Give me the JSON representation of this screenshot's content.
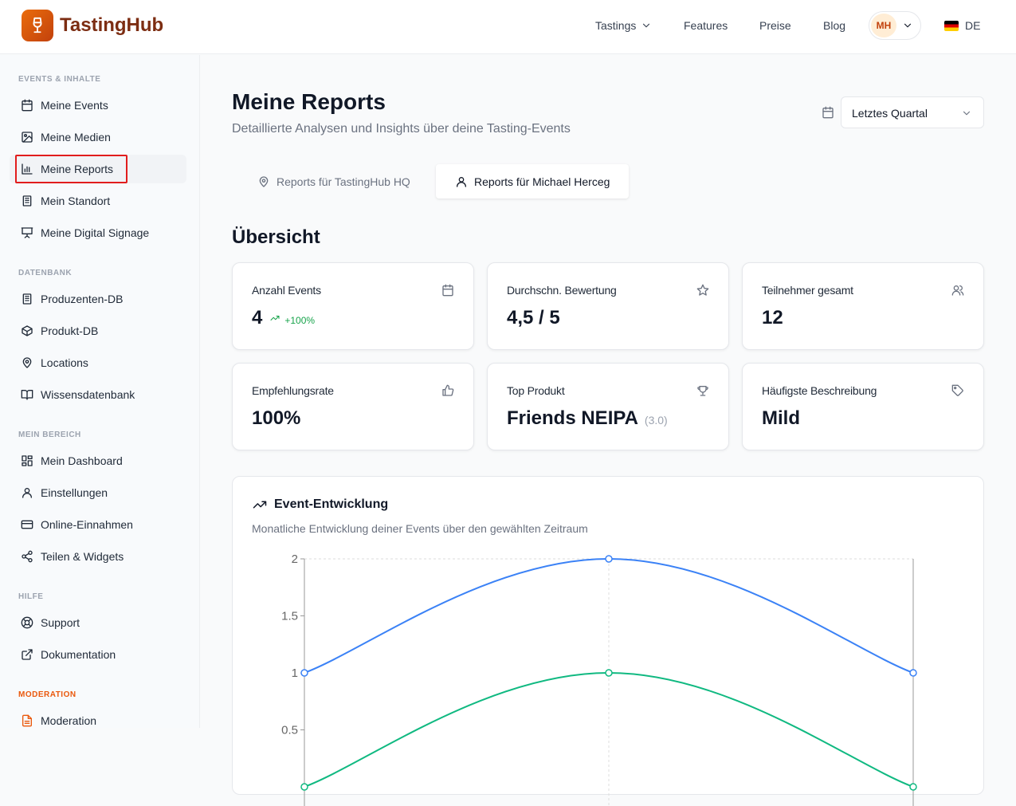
{
  "header": {
    "brand": "TastingHub",
    "nav": [
      {
        "label": "Tastings"
      },
      {
        "label": "Features"
      },
      {
        "label": "Preise"
      },
      {
        "label": "Blog"
      }
    ],
    "avatar_initials": "MH",
    "language": "DE"
  },
  "sidebar": {
    "sections": [
      {
        "title": "EVENTS & INHALTE",
        "items": [
          {
            "label": "Meine Events",
            "icon": "calendar-icon"
          },
          {
            "label": "Meine Medien",
            "icon": "image-icon"
          },
          {
            "label": "Meine Reports",
            "icon": "bar-chart-icon",
            "active": true
          },
          {
            "label": "Mein Standort",
            "icon": "building-icon"
          },
          {
            "label": "Meine Digital Signage",
            "icon": "presentation-icon"
          }
        ]
      },
      {
        "title": "DATENBANK",
        "items": [
          {
            "label": "Produzenten-DB",
            "icon": "building-icon"
          },
          {
            "label": "Produkt-DB",
            "icon": "package-icon"
          },
          {
            "label": "Locations",
            "icon": "map-pin-icon"
          },
          {
            "label": "Wissensdatenbank",
            "icon": "book-icon"
          }
        ]
      },
      {
        "title": "MEIN BEREICH",
        "items": [
          {
            "label": "Mein Dashboard",
            "icon": "dashboard-icon"
          },
          {
            "label": "Einstellungen",
            "icon": "user-icon"
          },
          {
            "label": "Online-Einnahmen",
            "icon": "credit-card-icon"
          },
          {
            "label": "Teilen & Widgets",
            "icon": "share-icon"
          }
        ]
      },
      {
        "title": "HILFE",
        "items": [
          {
            "label": "Support",
            "icon": "lifebuoy-icon"
          },
          {
            "label": "Dokumentation",
            "icon": "external-link-icon"
          }
        ]
      },
      {
        "title": "MODERATION",
        "items": [
          {
            "label": "Moderation",
            "icon": "file-icon"
          }
        ]
      }
    ]
  },
  "page": {
    "title": "Meine Reports",
    "subtitle": "Detaillierte Analysen und Insights über deine Tasting-Events",
    "period": "Letztes Quartal",
    "tabs": [
      {
        "label": "Reports für TastingHub HQ",
        "active": false
      },
      {
        "label": "Reports für Michael Herceg",
        "active": true
      }
    ],
    "overview_title": "Übersicht",
    "stats": [
      {
        "label": "Anzahl Events",
        "value": "4",
        "trend": "+100%",
        "icon": "calendar-icon"
      },
      {
        "label": "Durchschn. Bewertung",
        "value": "4,5 / 5",
        "icon": "star-icon"
      },
      {
        "label": "Teilnehmer gesamt",
        "value": "12",
        "icon": "users-icon"
      },
      {
        "label": "Empfehlungsrate",
        "value": "100%",
        "icon": "thumbs-up-icon"
      },
      {
        "label": "Top Produkt",
        "value": "Friends NEIPA",
        "extra": "(3.0)",
        "icon": "trophy-icon"
      },
      {
        "label": "Häufigste Beschreibung",
        "value": "Mild",
        "icon": "tag-icon"
      }
    ],
    "chart_title": "Event-Entwicklung",
    "chart_subtitle": "Monatliche Entwicklung deiner Events über den gewählten Zeitraum"
  },
  "colors": {
    "accent": "#ea580c",
    "blue": "#3b82f6",
    "green": "#10b981",
    "trend": "#16a34a",
    "highlight": "#e11d1d"
  },
  "chart_data": {
    "type": "line",
    "y_ticks": [
      "2",
      "1.5",
      "1",
      "0.5"
    ],
    "ylim": [
      0,
      2
    ],
    "grid": true,
    "series": [
      {
        "values": [
          1,
          2,
          1
        ],
        "color": "#3b82f6"
      },
      {
        "values": [
          0,
          1,
          0
        ],
        "color": "#10b981"
      }
    ]
  }
}
